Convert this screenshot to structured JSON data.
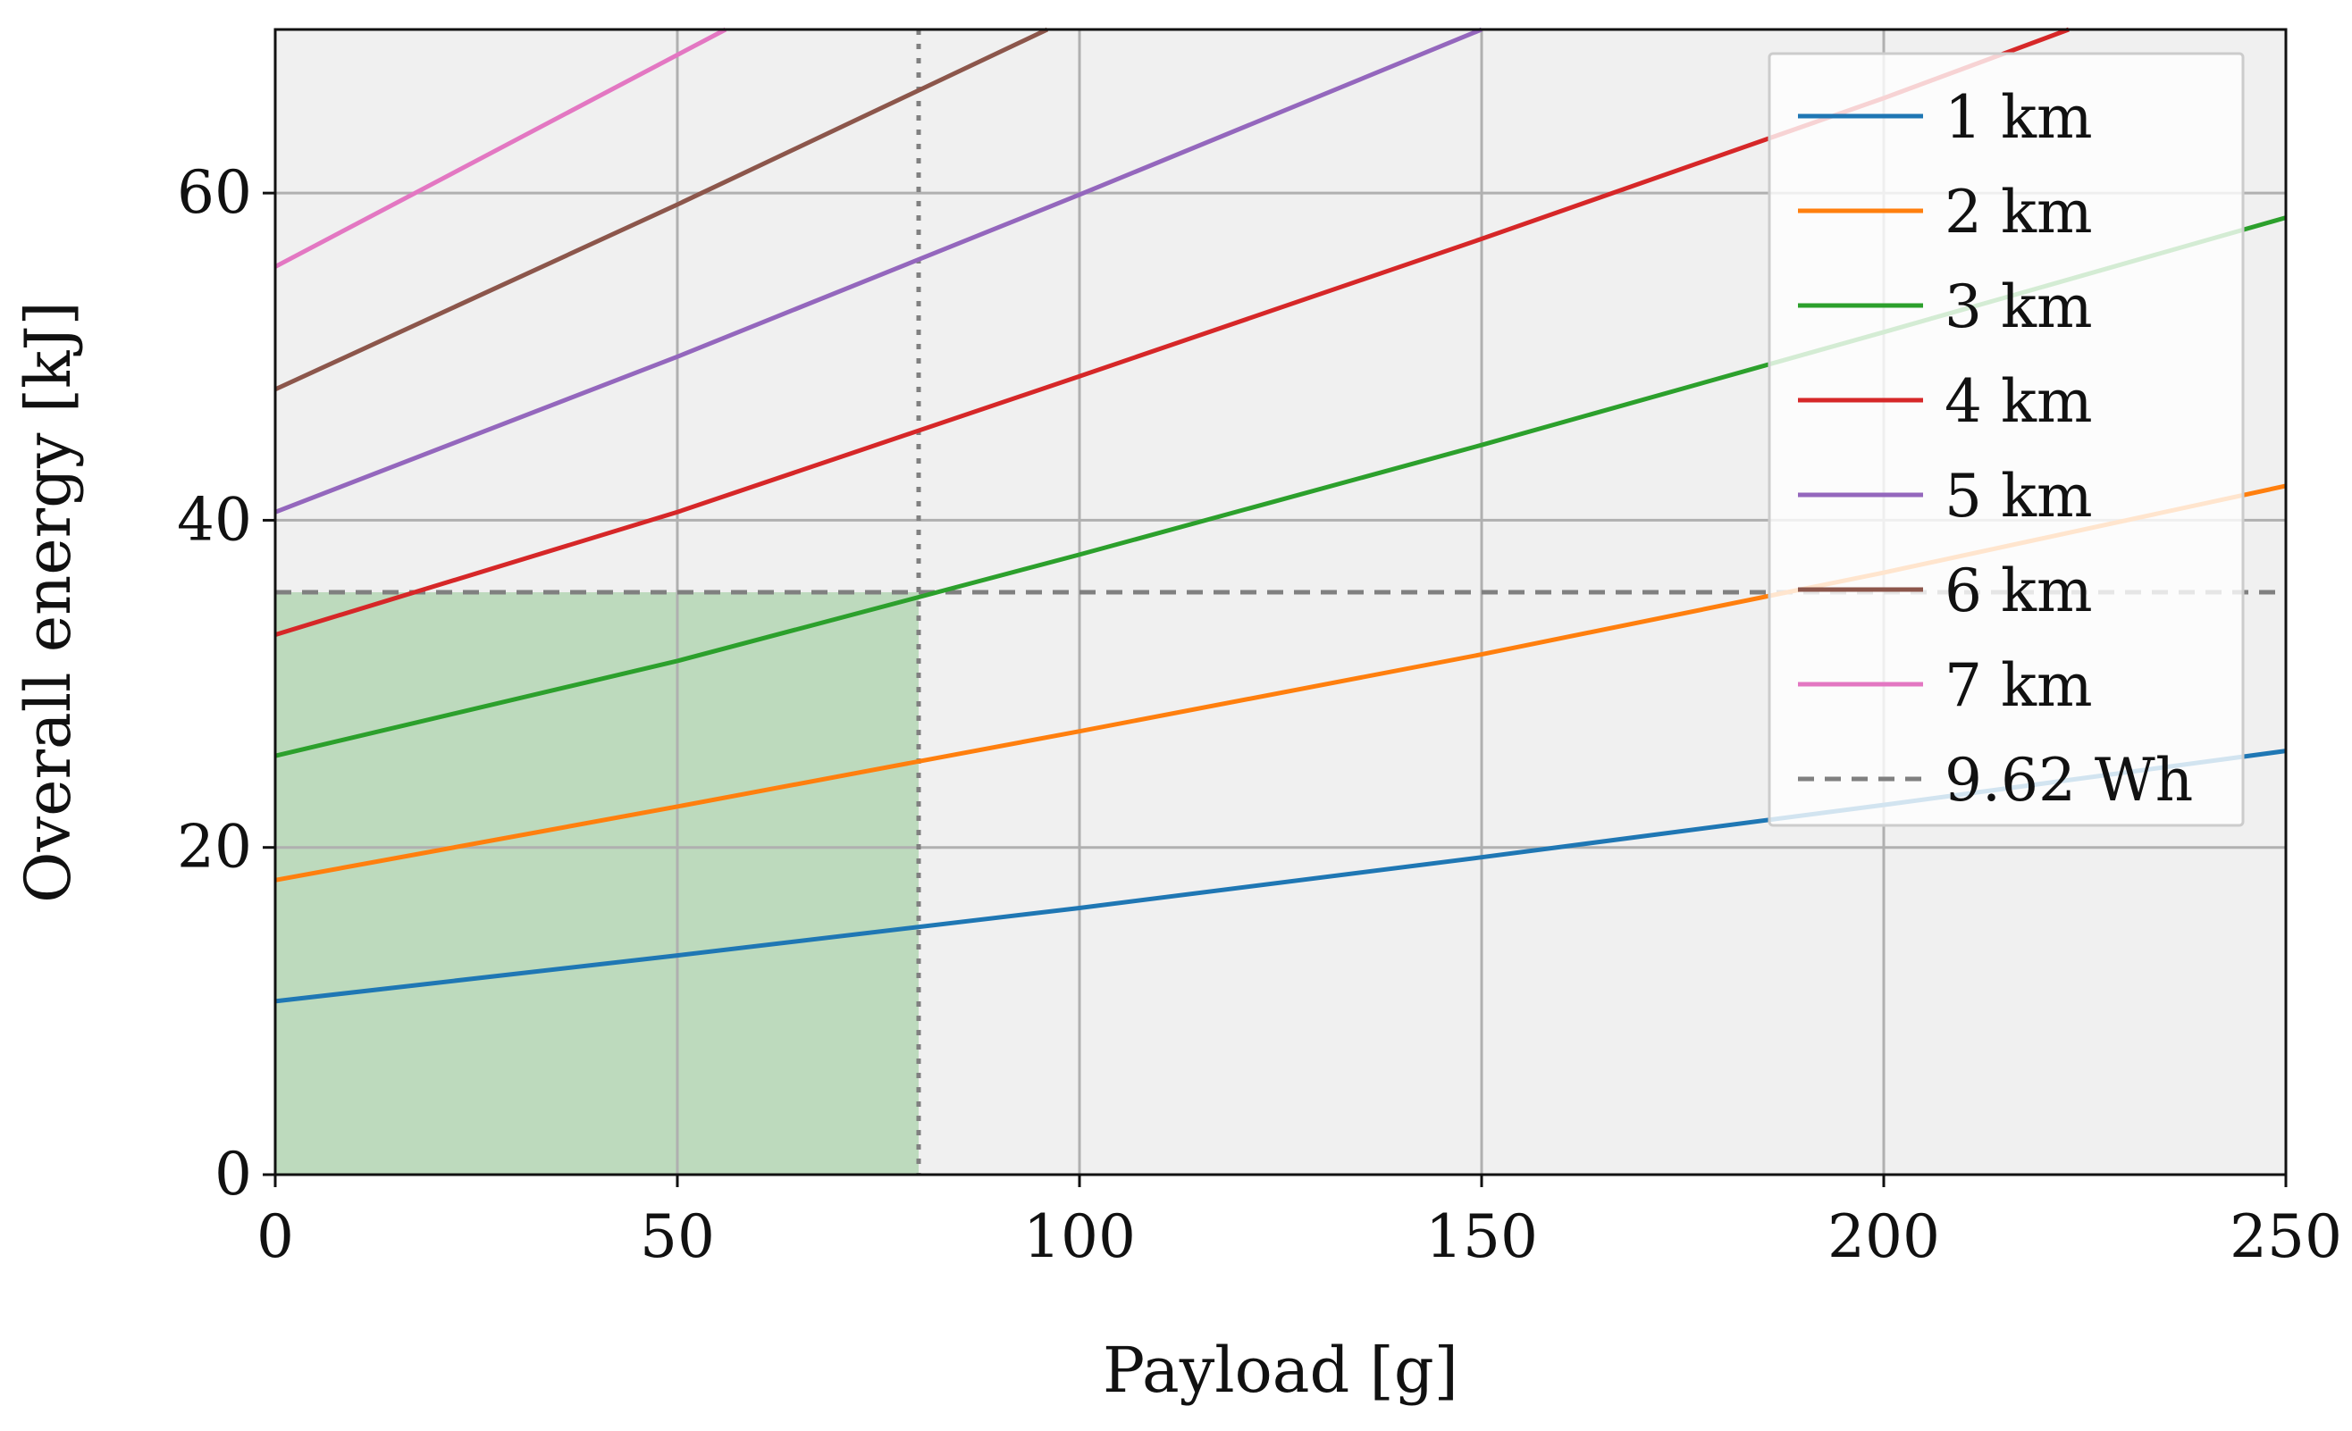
{
  "chart_data": {
    "type": "line",
    "title": "",
    "xlabel": "Payload [g]",
    "ylabel": "Overall energy [kJ]",
    "xlim": [
      0,
      250
    ],
    "ylim": [
      0,
      70
    ],
    "xticks": [
      0,
      50,
      100,
      150,
      200,
      250
    ],
    "yticks": [
      0,
      20,
      40,
      60
    ],
    "grid": true,
    "legend_position": "top-right",
    "background_color": "#f0f0f0",
    "series": [
      {
        "name": "1 km",
        "color": "#1f77b4",
        "x": [
          0,
          50,
          100,
          150,
          200,
          250
        ],
        "values": [
          10.6,
          13.4,
          16.3,
          19.4,
          22.6,
          25.9
        ]
      },
      {
        "name": "2 km",
        "color": "#ff7f0e",
        "x": [
          0,
          50,
          100,
          150,
          200,
          250
        ],
        "values": [
          18.0,
          22.5,
          27.1,
          31.8,
          36.8,
          42.1
        ]
      },
      {
        "name": "3 km",
        "color": "#2ca02c",
        "x": [
          0,
          50,
          100,
          150,
          200,
          250
        ],
        "values": [
          25.6,
          31.4,
          37.9,
          44.6,
          51.5,
          58.5
        ]
      },
      {
        "name": "4 km",
        "color": "#d62728",
        "x": [
          0,
          50,
          100,
          150,
          200,
          223
        ],
        "values": [
          33.0,
          40.5,
          48.8,
          57.2,
          65.8,
          70.0
        ]
      },
      {
        "name": "5 km",
        "color": "#9467bd",
        "x": [
          0,
          50,
          100,
          150
        ],
        "values": [
          40.5,
          50.0,
          59.9,
          70.0
        ]
      },
      {
        "name": "6 km",
        "color": "#8c564b",
        "x": [
          0,
          50,
          96
        ],
        "values": [
          48.0,
          59.3,
          70.0
        ]
      },
      {
        "name": "7 km",
        "color": "#e377c2",
        "x": [
          0,
          56
        ],
        "values": [
          55.5,
          70.0
        ]
      }
    ],
    "reference_lines": [
      {
        "name": "9.62 Wh",
        "orientation": "horizontal",
        "value": 35.6,
        "style": "dashed",
        "color": "#808080"
      },
      {
        "name": "",
        "orientation": "vertical",
        "value": 80,
        "style": "dotted",
        "color": "#808080"
      }
    ],
    "shaded_region": {
      "x": [
        0,
        80
      ],
      "y": [
        0,
        35.6
      ],
      "color": "#b4d6b4"
    }
  }
}
